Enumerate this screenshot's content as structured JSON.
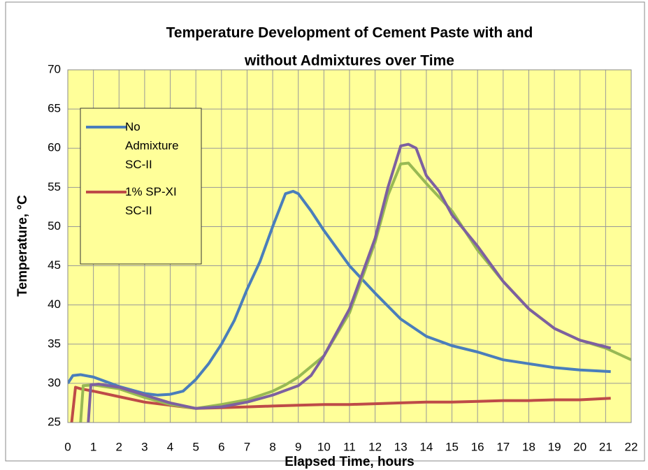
{
  "chart_data": {
    "type": "line",
    "title": [
      "Temperature Development of Cement Paste with and",
      "without Admixtures over Time"
    ],
    "x_label": "Elapsed Time, hours",
    "y_label": "Temperature, °C",
    "xlim": [
      0,
      22
    ],
    "xticks": [
      0,
      1,
      2,
      3,
      4,
      5,
      6,
      7,
      8,
      9,
      10,
      11,
      12,
      13,
      14,
      15,
      16,
      17,
      18,
      19,
      20,
      21,
      22
    ],
    "ylim": [
      25,
      70
    ],
    "yticks": [
      25,
      30,
      35,
      40,
      45,
      50,
      55,
      60,
      65,
      70
    ],
    "grid": true,
    "legend": "upper left",
    "series": [
      {
        "name": "No Admixture SC-II",
        "color": "#4a7ebb",
        "x": [
          0,
          0.2,
          0.5,
          1,
          1.5,
          2,
          3,
          3.5,
          4,
          4.5,
          5,
          5.5,
          6,
          6.5,
          7,
          7.5,
          8,
          8.5,
          8.8,
          9,
          9.5,
          10,
          11,
          12,
          13,
          14,
          15,
          16,
          17,
          18,
          19,
          20,
          21.2
        ],
        "values": [
          30,
          31,
          31.1,
          30.8,
          30.2,
          29.6,
          28.7,
          28.5,
          28.6,
          29,
          30.5,
          32.5,
          35,
          38,
          42,
          45.5,
          50,
          54.2,
          54.5,
          54.2,
          52,
          49.5,
          45,
          41.5,
          38.2,
          36,
          34.8,
          34,
          33,
          32.5,
          32,
          31.7,
          31.5
        ]
      },
      {
        "name": "1% SP-XI SC-II",
        "color": "#be4b48",
        "x": [
          0.15,
          0.3,
          0.5,
          1,
          2,
          3,
          4,
          5,
          6,
          7,
          8,
          9,
          10,
          11,
          12,
          13,
          14,
          15,
          16,
          17,
          18,
          19,
          20,
          21.2
        ],
        "values": [
          25,
          29.5,
          29.3,
          29,
          28.3,
          27.6,
          27.2,
          26.8,
          26.9,
          27,
          27.1,
          27.2,
          27.3,
          27.3,
          27.4,
          27.5,
          27.6,
          27.6,
          27.7,
          27.8,
          27.8,
          27.9,
          27.9,
          28.1
        ]
      },
      {
        "color": "#98b954",
        "x": [
          0.5,
          0.6,
          1,
          2,
          3,
          4,
          5,
          6,
          7,
          8,
          8.5,
          9,
          10,
          11,
          12,
          12.5,
          13,
          13.3,
          14,
          15,
          16,
          17,
          18,
          19,
          20,
          21,
          22
        ],
        "values": [
          25,
          29.7,
          29.8,
          29.3,
          28.2,
          27.3,
          26.8,
          27.3,
          27.9,
          29,
          29.8,
          30.8,
          33.5,
          39,
          48,
          54,
          58,
          58.1,
          55.5,
          52,
          47,
          43,
          39.5,
          37,
          35.5,
          34.5,
          33
        ]
      },
      {
        "color": "#7d60a0",
        "x": [
          0.8,
          0.9,
          1.2,
          2,
          3,
          4,
          5,
          6,
          7,
          8,
          9,
          9.5,
          10,
          11,
          12,
          12.5,
          13,
          13.3,
          13.6,
          14,
          14.5,
          15,
          16,
          17,
          18,
          19,
          20,
          21.2
        ],
        "values": [
          25,
          29.8,
          29.9,
          29.5,
          28.5,
          27.5,
          26.8,
          27,
          27.6,
          28.5,
          29.7,
          31,
          33.5,
          39.5,
          48.5,
          55,
          60.3,
          60.5,
          60,
          56.5,
          54.5,
          51.5,
          47.5,
          43,
          39.5,
          37,
          35.5,
          34.5
        ]
      }
    ]
  }
}
